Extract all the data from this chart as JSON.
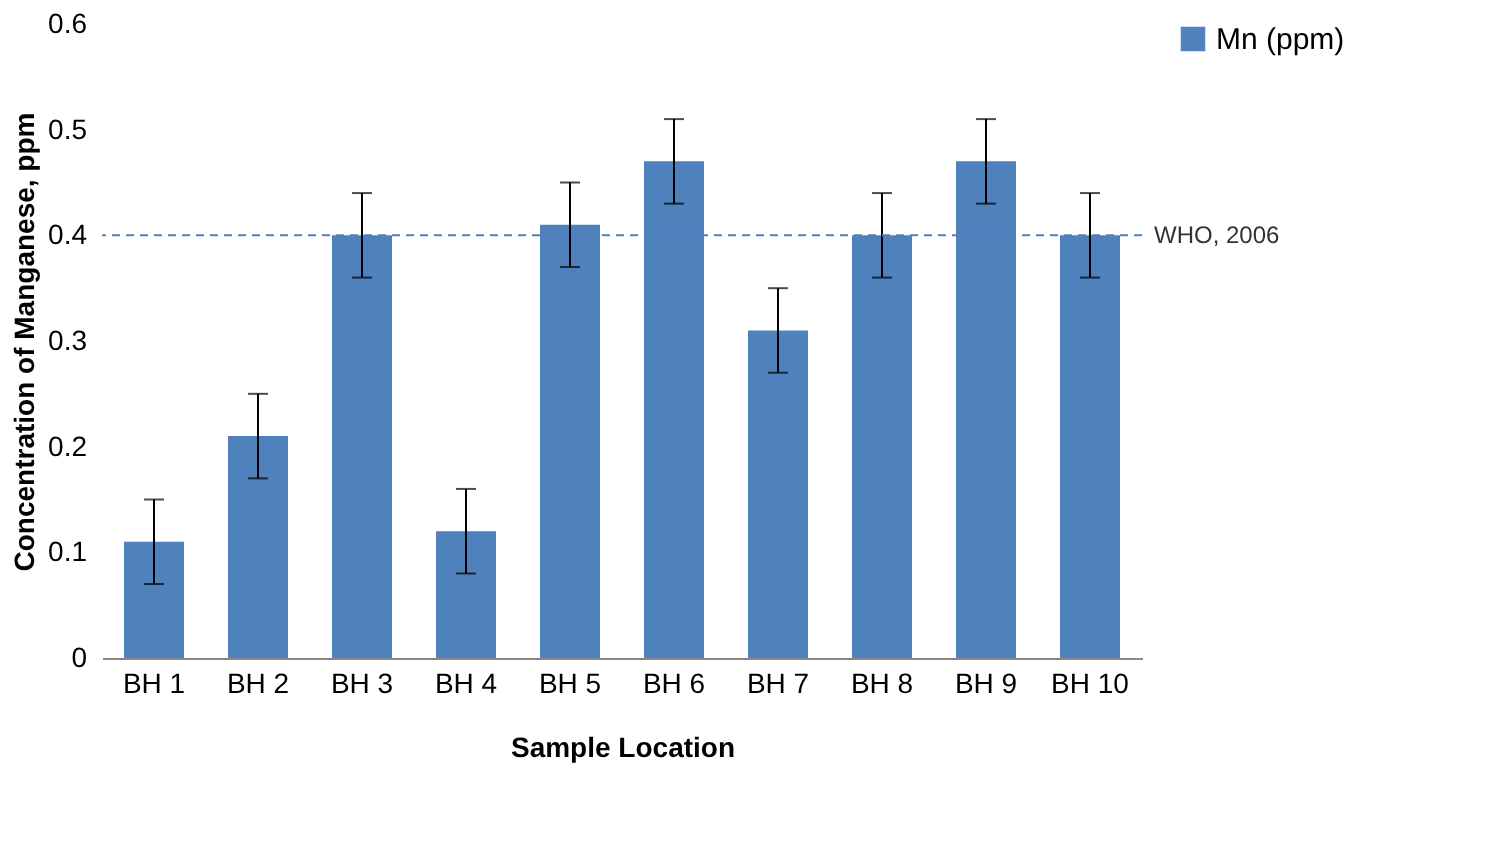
{
  "chart_data": {
    "type": "bar",
    "xlabel": "Sample Location",
    "ylabel": "Concentration of Manganese, ppm",
    "categories": [
      "BH 1",
      "BH 2",
      "BH 3",
      "BH 4",
      "BH 5",
      "BH 6",
      "BH 7",
      "BH 8",
      "BH 9",
      "BH 10"
    ],
    "series": [
      {
        "name": "Mn (ppm)",
        "color": "#4f81bd",
        "values": [
          0.11,
          0.21,
          0.4,
          0.12,
          0.41,
          0.47,
          0.31,
          0.4,
          0.47,
          0.4
        ],
        "errors": [
          0.04,
          0.04,
          0.04,
          0.04,
          0.04,
          0.04,
          0.04,
          0.04,
          0.04,
          0.04
        ]
      }
    ],
    "ylim": [
      0,
      0.6
    ],
    "yticks": [
      0,
      0.1,
      0.2,
      0.3,
      0.4,
      0.5,
      0.6
    ],
    "grid": false,
    "legend": "right",
    "ref_lines": [
      {
        "axis": "y",
        "value": 0.4,
        "label": "WHO, 2006",
        "color": "#4f81bd",
        "line_style": "dashed"
      }
    ]
  }
}
